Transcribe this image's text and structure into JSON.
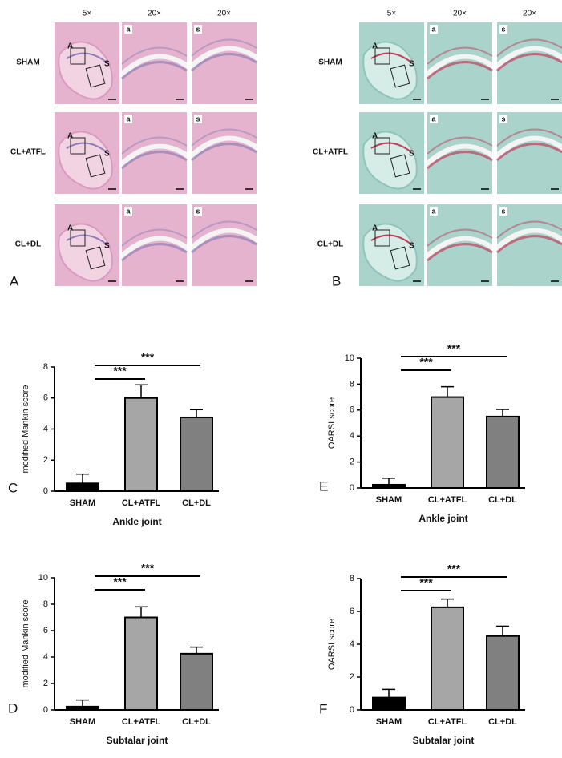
{
  "histology": [
    {
      "panel_label": "A",
      "columns": [
        "5×",
        "20×",
        "20×"
      ],
      "rows": [
        "SHAM",
        "CL+ATFL",
        "CL+DL"
      ],
      "overview_box_labels": [
        "A",
        "S"
      ],
      "inset_labels": [
        "a",
        "s"
      ]
    },
    {
      "panel_label": "B",
      "columns": [
        "5×",
        "20×",
        "20×"
      ],
      "rows": [
        "SHAM",
        "CL+ATFL",
        "CL+DL"
      ],
      "overview_box_labels": [
        "A",
        "S"
      ],
      "inset_labels": [
        "a",
        "s"
      ]
    }
  ],
  "chart_data": [
    {
      "type": "bar",
      "panel_label": "C",
      "y_label": "modified Mankin score",
      "x_label": "Ankle joint",
      "categories": [
        "SHAM",
        "CL+ATFL",
        "CL+DL"
      ],
      "values": [
        0.5,
        6.0,
        4.75
      ],
      "errors": [
        0.6,
        0.85,
        0.5
      ],
      "colors": [
        "#000000",
        "#a6a6a6",
        "#808080"
      ],
      "ylim": [
        0,
        8
      ],
      "yticks": [
        0,
        2,
        4,
        6,
        8
      ],
      "significance_labels": [
        "***",
        "***"
      ]
    },
    {
      "type": "bar",
      "panel_label": "E",
      "y_label": "OARSI score",
      "x_label": "Ankle joint",
      "categories": [
        "SHAM",
        "CL+ATFL",
        "CL+DL"
      ],
      "values": [
        0.25,
        7.0,
        5.5
      ],
      "errors": [
        0.5,
        0.8,
        0.55
      ],
      "colors": [
        "#000000",
        "#a6a6a6",
        "#808080"
      ],
      "ylim": [
        0,
        10
      ],
      "yticks": [
        0,
        2,
        4,
        6,
        8,
        10
      ],
      "significance_labels": [
        "***",
        "***"
      ]
    },
    {
      "type": "bar",
      "panel_label": "D",
      "y_label": "modified Mankin score",
      "x_label": "Subtalar joint",
      "categories": [
        "SHAM",
        "CL+ATFL",
        "CL+DL"
      ],
      "values": [
        0.25,
        7.0,
        4.25
      ],
      "errors": [
        0.5,
        0.8,
        0.5
      ],
      "colors": [
        "#000000",
        "#a6a6a6",
        "#808080"
      ],
      "ylim": [
        0,
        10
      ],
      "yticks": [
        0,
        2,
        4,
        6,
        8,
        10
      ],
      "significance_labels": [
        "***",
        "***"
      ]
    },
    {
      "type": "bar",
      "panel_label": "F",
      "y_label": "OARSI score",
      "x_label": "Subtalar joint",
      "categories": [
        "SHAM",
        "CL+ATFL",
        "CL+DL"
      ],
      "values": [
        0.75,
        6.25,
        4.5
      ],
      "errors": [
        0.5,
        0.5,
        0.6
      ],
      "colors": [
        "#000000",
        "#a6a6a6",
        "#808080"
      ],
      "ylim": [
        0,
        8
      ],
      "yticks": [
        0,
        2,
        4,
        6,
        8
      ],
      "significance_labels": [
        "***",
        "***"
      ]
    }
  ]
}
